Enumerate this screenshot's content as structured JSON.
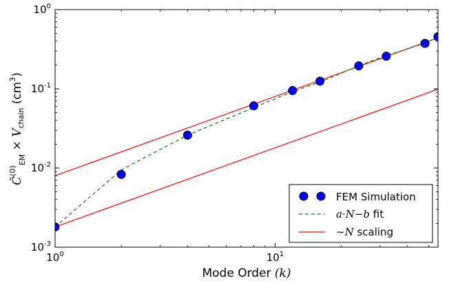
{
  "chart_data": {
    "type": "line",
    "xlabel": {
      "text": "Mode Order ",
      "math": "(k)"
    },
    "ylabel": {
      "math": "Ĉ",
      "sup": "(0)",
      "sub": "EM",
      "mid": " × V",
      "sub2": "chain",
      "unit": " (cm",
      "unit_sup": "3",
      "unit_end": ")"
    },
    "x_scale": "log",
    "y_scale": "log",
    "xlim": [
      1,
      55
    ],
    "ylim": [
      0.001,
      1
    ],
    "x_ticks": [
      {
        "value": 1,
        "base": "10",
        "exp": "0"
      },
      {
        "value": 10,
        "base": "10",
        "exp": "1"
      }
    ],
    "y_ticks": [
      {
        "value": 0.001,
        "base": "10",
        "exp": "-3"
      },
      {
        "value": 0.01,
        "base": "10",
        "exp": "-2"
      },
      {
        "value": 0.1,
        "base": "10",
        "exp": "-1"
      },
      {
        "value": 1,
        "base": "10",
        "exp": "0"
      }
    ],
    "grid": false,
    "legend_placement": "lower-right",
    "series": [
      {
        "name": "FEM Simulation",
        "kind": "scatter",
        "color": "#0000ff",
        "x": [
          1,
          2,
          4,
          8,
          12,
          16,
          24,
          32,
          48,
          55
        ],
        "y": [
          0.0018,
          0.0083,
          0.026,
          0.061,
          0.095,
          0.125,
          0.195,
          0.258,
          0.375,
          0.455
        ]
      },
      {
        "name": "a·N−b",
        "name_suffix": " fit",
        "kind": "dashed-line",
        "color": "#008000",
        "x": [
          1,
          2,
          4,
          8,
          12,
          16,
          24,
          32,
          48,
          55
        ],
        "y": [
          0.0018,
          0.0095,
          0.026,
          0.058,
          0.092,
          0.122,
          0.195,
          0.262,
          0.378,
          0.45
        ]
      },
      {
        "name": "∼N",
        "name_suffix": " scaling",
        "kind": "line",
        "color": "#ff0000",
        "x": [
          1,
          55
        ],
        "y": [
          0.008,
          0.44
        ]
      },
      {
        "name": "",
        "kind": "line",
        "color": "#ff0000",
        "x": [
          1,
          55
        ],
        "y": [
          0.0018,
          0.099
        ]
      }
    ]
  }
}
